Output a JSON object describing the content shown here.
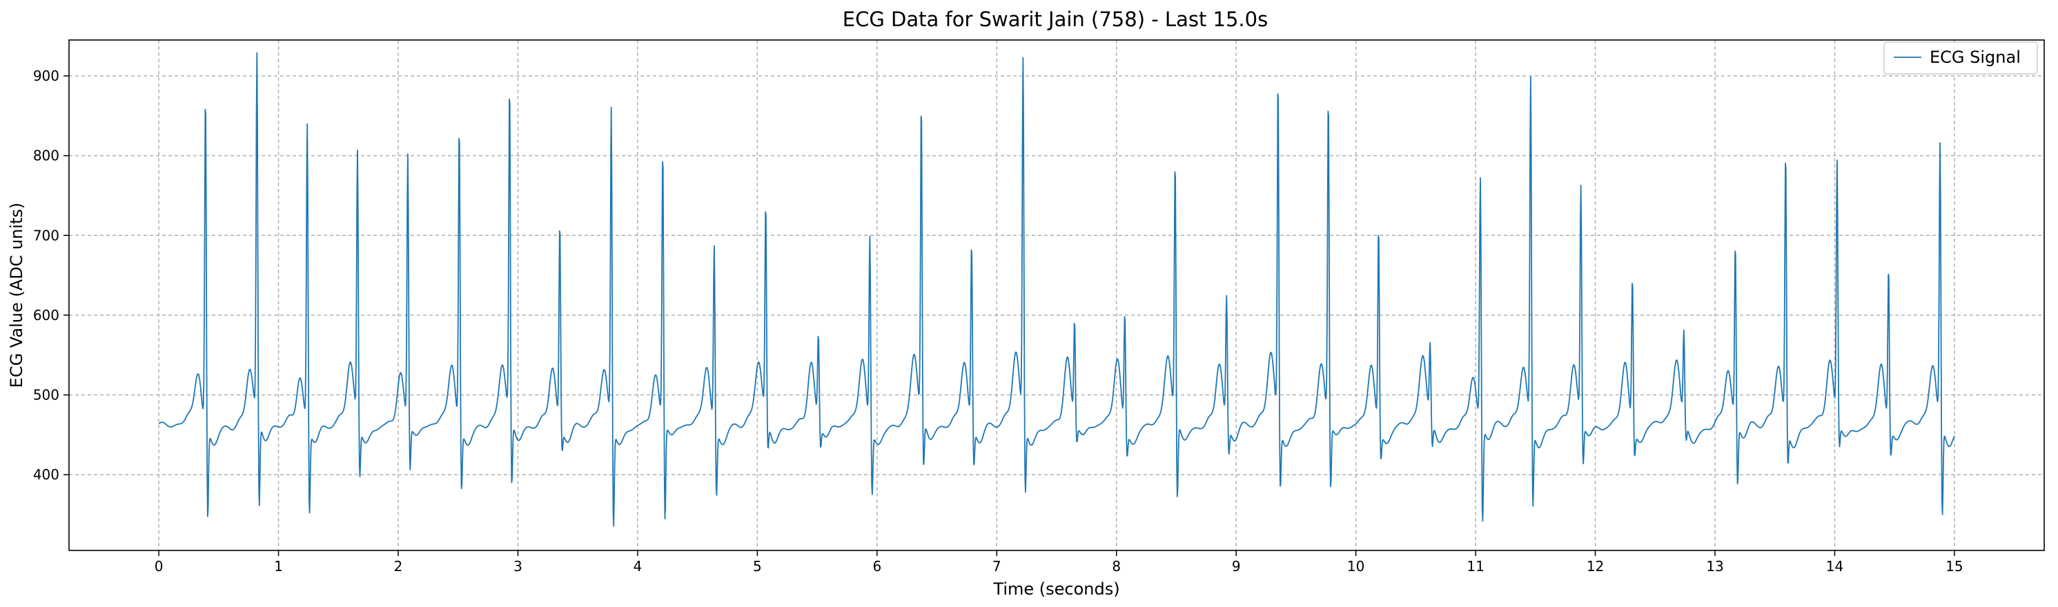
{
  "chart_data": {
    "type": "line",
    "title": "ECG Data for Swarit Jain (758) - Last 15.0s",
    "xlabel": "Time (seconds)",
    "ylabel": "ECG Value (ADC units)",
    "xlim": [
      -0.75,
      15.75
    ],
    "ylim": [
      305,
      945
    ],
    "x_ticks": [
      0,
      1,
      2,
      3,
      4,
      5,
      6,
      7,
      8,
      9,
      10,
      11,
      12,
      13,
      14,
      15
    ],
    "x_tick_labels": [
      "0",
      "1",
      "2",
      "3",
      "4",
      "5",
      "6",
      "7",
      "8",
      "9",
      "10",
      "11",
      "12",
      "13",
      "14",
      "15"
    ],
    "y_ticks": [
      400,
      500,
      600,
      700,
      800,
      900
    ],
    "y_tick_labels": [
      "400",
      "500",
      "600",
      "700",
      "800",
      "900"
    ],
    "grid": true,
    "grid_style": "dashed",
    "legend_position": "top-right",
    "duration_s": 15.0,
    "baseline": 460,
    "beats": [
      {
        "t": 0.39,
        "peak": 876,
        "trough": 345,
        "p": 525
      },
      {
        "t": 0.82,
        "peak": 917,
        "trough": 348,
        "p": 530
      },
      {
        "t": 1.24,
        "peak": 841,
        "trough": 352,
        "p": 528
      },
      {
        "t": 1.66,
        "peak": 800,
        "trough": 396,
        "p": 533
      },
      {
        "t": 2.08,
        "peak": 798,
        "trough": 402,
        "p": 530
      },
      {
        "t": 2.51,
        "peak": 838,
        "trough": 382,
        "p": 537
      },
      {
        "t": 2.93,
        "peak": 875,
        "trough": 375,
        "p": 535
      },
      {
        "t": 3.35,
        "peak": 713,
        "trough": 432,
        "p": 541
      },
      {
        "t": 3.78,
        "peak": 857,
        "trough": 332,
        "p": 525
      },
      {
        "t": 4.21,
        "peak": 801,
        "trough": 336,
        "p": 525
      },
      {
        "t": 4.64,
        "peak": 689,
        "trough": 377,
        "p": 537
      },
      {
        "t": 5.07,
        "peak": 726,
        "trough": 425,
        "p": 537
      },
      {
        "t": 5.51,
        "peak": 571,
        "trough": 435,
        "p": 545
      },
      {
        "t": 5.94,
        "peak": 700,
        "trough": 379,
        "p": 541
      },
      {
        "t": 6.37,
        "peak": 852,
        "trough": 398,
        "p": 548
      },
      {
        "t": 6.79,
        "peak": 688,
        "trough": 413,
        "p": 548
      },
      {
        "t": 7.22,
        "peak": 914,
        "trough": 374,
        "p": 548
      },
      {
        "t": 7.65,
        "peak": 585,
        "trough": 438,
        "p": 548
      },
      {
        "t": 8.07,
        "peak": 604,
        "trough": 430,
        "p": 544
      },
      {
        "t": 8.49,
        "peak": 780,
        "trough": 360,
        "p": 545
      },
      {
        "t": 8.92,
        "peak": 620,
        "trough": 427,
        "p": 546
      },
      {
        "t": 9.35,
        "peak": 888,
        "trough": 382,
        "p": 549
      },
      {
        "t": 9.77,
        "peak": 864,
        "trough": 375,
        "p": 538
      },
      {
        "t": 10.19,
        "peak": 712,
        "trough": 425,
        "p": 537
      },
      {
        "t": 10.62,
        "peak": 553,
        "trough": 430,
        "p": 545
      },
      {
        "t": 11.04,
        "peak": 770,
        "trough": 336,
        "p": 528
      },
      {
        "t": 11.46,
        "peak": 894,
        "trough": 358,
        "p": 533
      },
      {
        "t": 11.88,
        "peak": 753,
        "trough": 408,
        "p": 537
      },
      {
        "t": 12.31,
        "peak": 648,
        "trough": 430,
        "p": 541
      },
      {
        "t": 12.74,
        "peak": 571,
        "trough": 440,
        "p": 540
      },
      {
        "t": 13.17,
        "peak": 682,
        "trough": 383,
        "p": 535
      },
      {
        "t": 13.59,
        "peak": 800,
        "trough": 415,
        "p": 536
      },
      {
        "t": 14.02,
        "peak": 784,
        "trough": 430,
        "p": 540
      },
      {
        "t": 14.45,
        "peak": 659,
        "trough": 427,
        "p": 540
      },
      {
        "t": 14.88,
        "peak": 810,
        "trough": 343,
        "p": 535
      }
    ],
    "series": [
      {
        "name": "ECG Signal",
        "color": "#1f77b4"
      }
    ]
  }
}
